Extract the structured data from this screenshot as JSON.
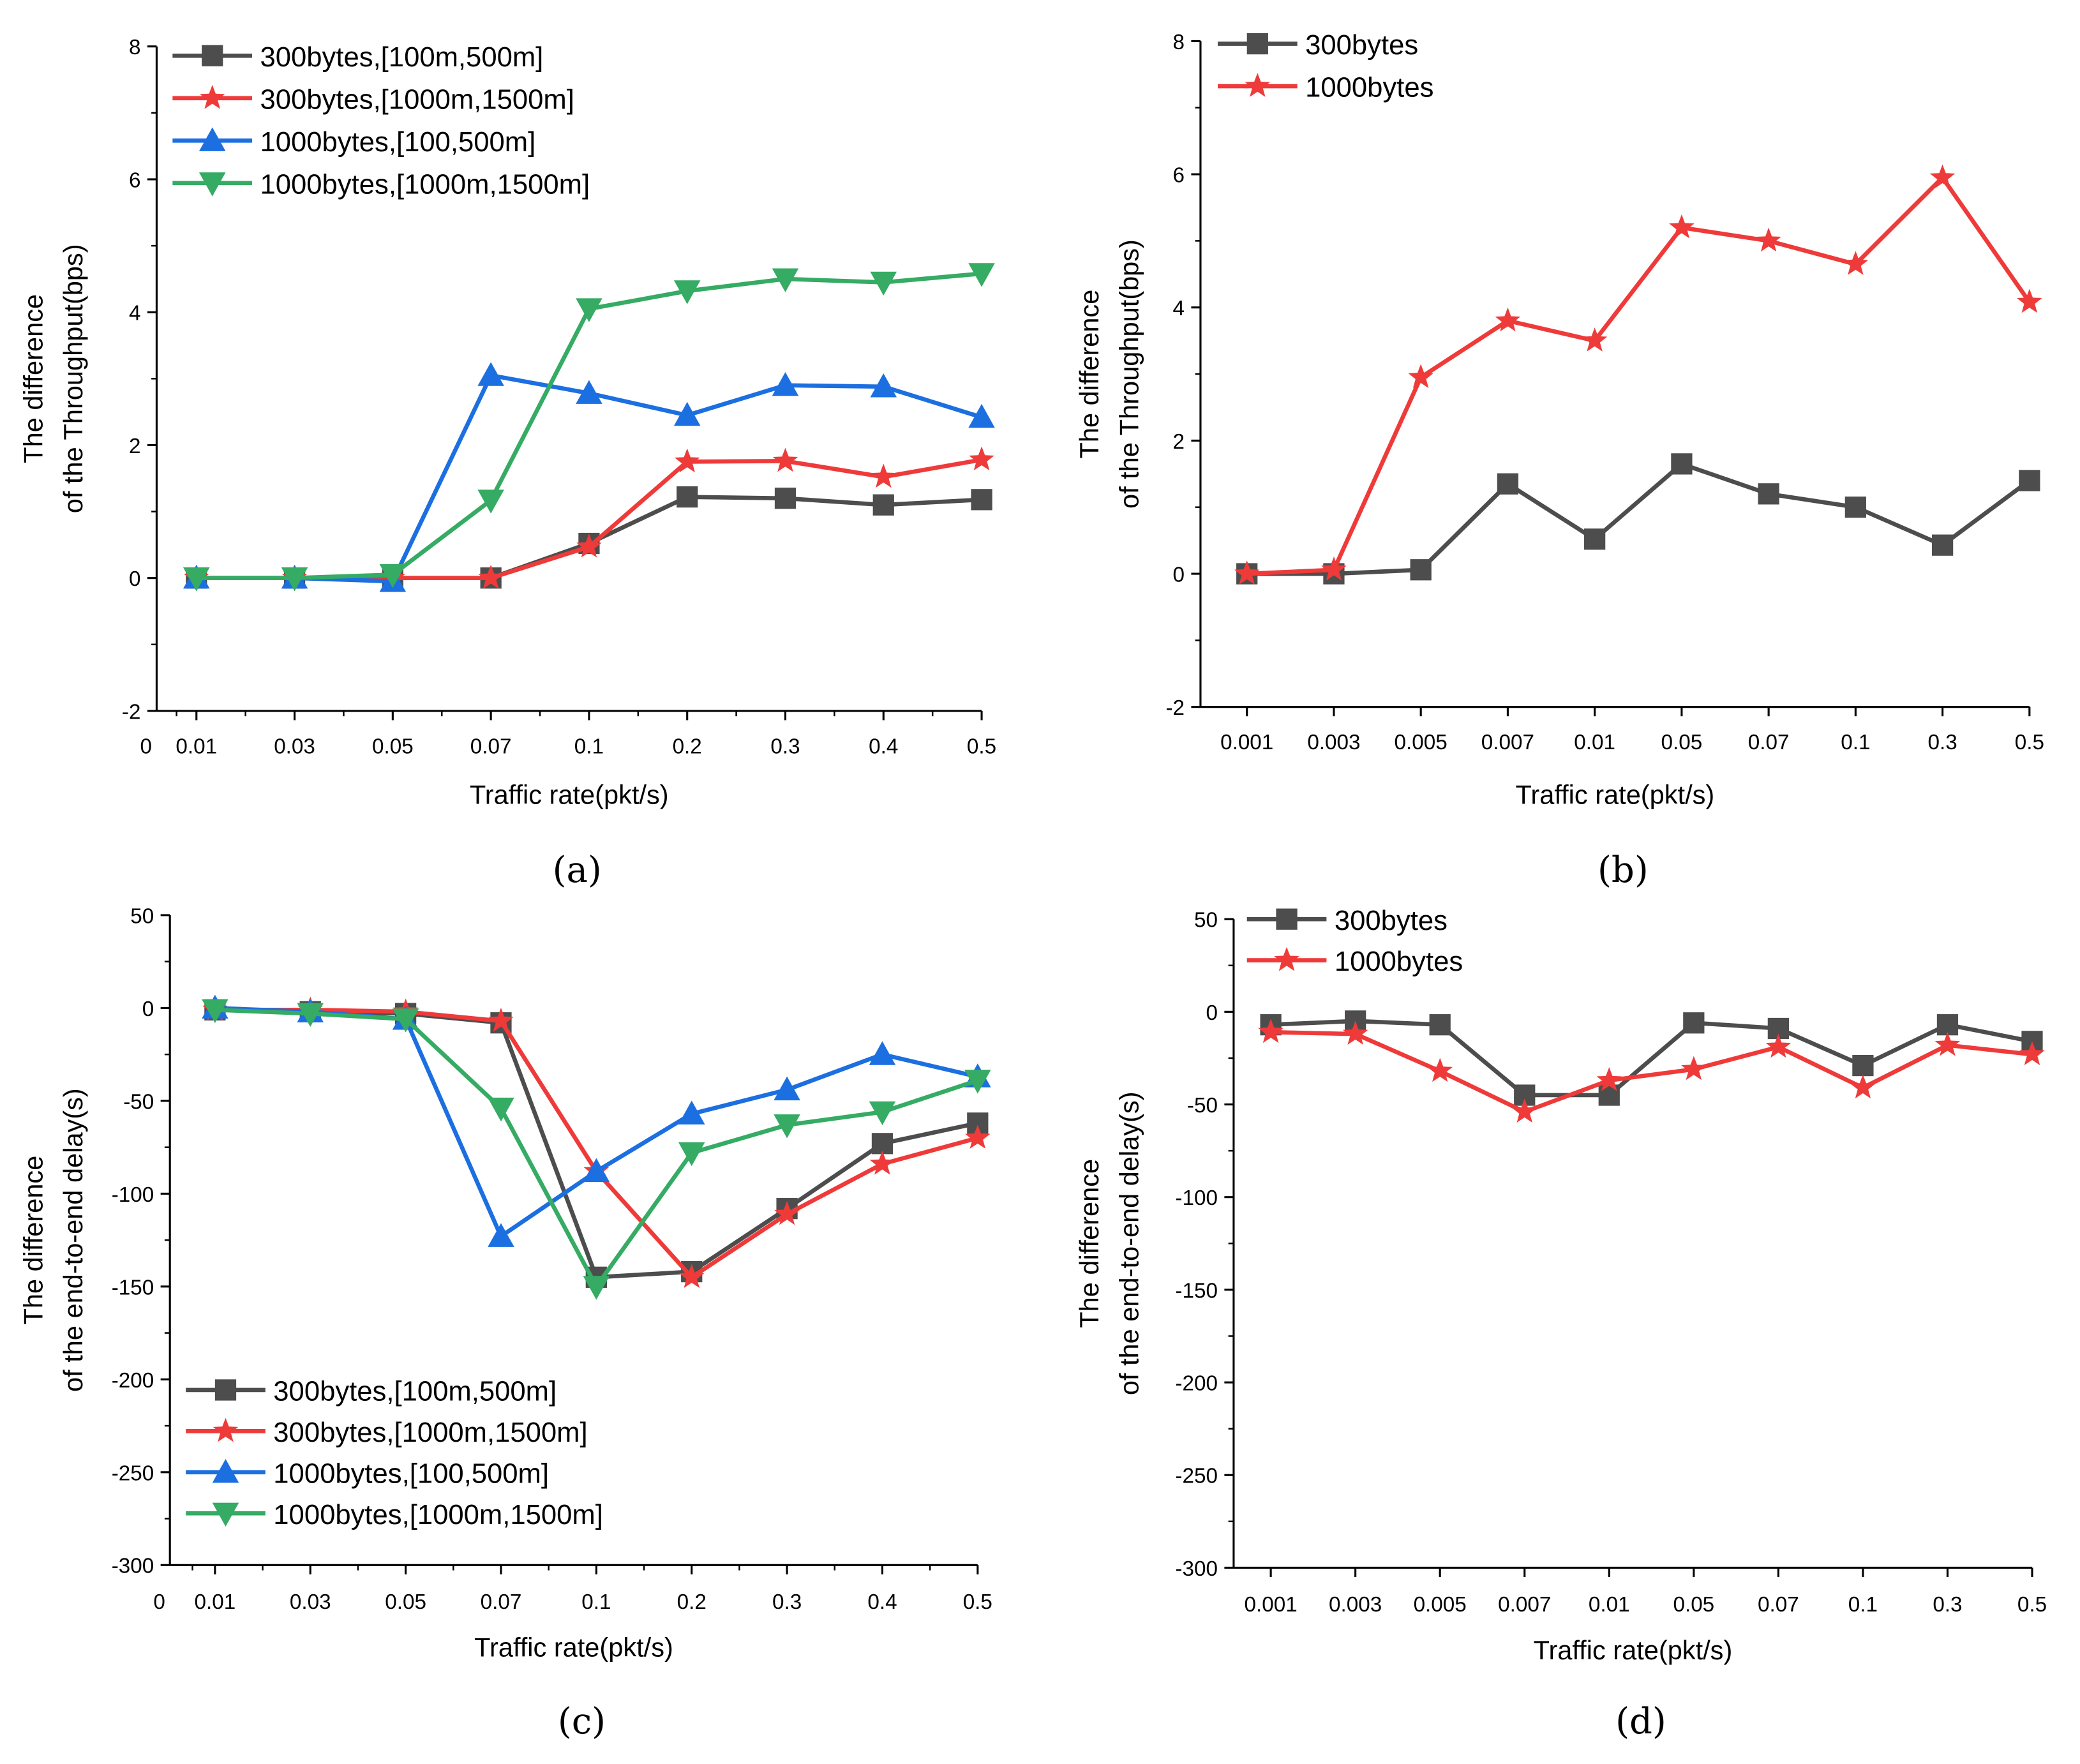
{
  "colors": {
    "black": "#4d4d4d",
    "red": "#ef3a3a",
    "blue": "#1c6fe0",
    "green": "#35ab64"
  },
  "chart_data": [
    {
      "type": "line",
      "caption": "(a)",
      "xlabel": "Traffic rate(pkt/s)",
      "ylabel": [
        "The difference",
        "of  the Throughput(bps)"
      ],
      "x_origin_label": "0",
      "categories": [
        "0.01",
        "0.03",
        "0.05",
        "0.07",
        "0.1",
        "0.2",
        "0.3",
        "0.4",
        "0.5"
      ],
      "ylim": [
        -2,
        8
      ],
      "yticks": [
        -2,
        0,
        2,
        4,
        6,
        8
      ],
      "legend": "top-left",
      "series": [
        {
          "name": "300bytes,[100m,500m]",
          "color": "black",
          "marker": "square",
          "values": [
            0,
            0,
            0,
            0,
            0.52,
            1.22,
            1.2,
            1.1,
            1.18
          ]
        },
        {
          "name": "300bytes,[1000m,1500m]",
          "color": "red",
          "marker": "star",
          "values": [
            0,
            0,
            0,
            0,
            0.47,
            1.75,
            1.76,
            1.52,
            1.78
          ]
        },
        {
          "name": "1000bytes,[100,500m]",
          "color": "blue",
          "marker": "triangle-up",
          "values": [
            0,
            0,
            -0.05,
            3.05,
            2.78,
            2.45,
            2.9,
            2.88,
            2.42
          ]
        },
        {
          "name": "1000bytes,[1000m,1500m]",
          "color": "green",
          "marker": "triangle-down",
          "values": [
            0,
            0,
            0.05,
            1.17,
            4.05,
            4.32,
            4.5,
            4.45,
            4.58
          ]
        }
      ]
    },
    {
      "type": "line",
      "caption": "(b)",
      "xlabel": "Traffic rate(pkt/s)",
      "ylabel": [
        "The difference",
        "of  the Throughput(bps)"
      ],
      "categories": [
        "0.001",
        "0.003",
        "0.005",
        "0.007",
        "0.01",
        "0.05",
        "0.07",
        "0.1",
        "0.3",
        "0.5"
      ],
      "ylim": [
        -2,
        8
      ],
      "yticks": [
        -2,
        0,
        2,
        4,
        6,
        8
      ],
      "legend": "top-left",
      "series": [
        {
          "name": "300bytes",
          "color": "black",
          "marker": "square",
          "values": [
            0,
            0,
            0.06,
            1.35,
            0.52,
            1.65,
            1.2,
            1.0,
            0.43,
            1.4
          ]
        },
        {
          "name": "1000bytes",
          "color": "red",
          "marker": "star",
          "values": [
            0,
            0.06,
            2.95,
            3.8,
            3.5,
            5.2,
            5.0,
            4.65,
            5.95,
            4.08
          ]
        }
      ]
    },
    {
      "type": "line",
      "caption": "(c)",
      "xlabel": "Traffic rate(pkt/s)",
      "ylabel": [
        "The difference",
        "of the end-to-end delay(s)"
      ],
      "x_origin_label": "0",
      "categories": [
        "0.01",
        "0.03",
        "0.05",
        "0.07",
        "0.1",
        "0.2",
        "0.3",
        "0.4",
        "0.5"
      ],
      "ylim": [
        -300,
        50
      ],
      "yticks": [
        -300,
        -250,
        -200,
        -150,
        -100,
        -50,
        0,
        50
      ],
      "legend": "bottom-left",
      "series": [
        {
          "name": "300bytes,[100m,500m]",
          "color": "black",
          "marker": "square",
          "values": [
            -1,
            -2,
            -3,
            -8,
            -145,
            -142,
            -108,
            -73,
            -62
          ]
        },
        {
          "name": "300bytes,[1000m,1500m]",
          "color": "red",
          "marker": "star",
          "values": [
            -1,
            -1,
            -2,
            -7,
            -88,
            -145,
            -111,
            -84,
            -70
          ]
        },
        {
          "name": "1000bytes,[100,500m]",
          "color": "blue",
          "marker": "triangle-up",
          "values": [
            0,
            -2,
            -6,
            -123,
            -88,
            -57,
            -44,
            -25,
            -37
          ]
        },
        {
          "name": "1000bytes,[1000m,1500m]",
          "color": "green",
          "marker": "triangle-down",
          "values": [
            -1,
            -3,
            -6,
            -54,
            -150,
            -78,
            -63,
            -56,
            -39
          ]
        }
      ]
    },
    {
      "type": "line",
      "caption": "(d)",
      "xlabel": "Traffic rate(pkt/s)",
      "ylabel": [
        "The difference",
        "of the end-to-end delay(s)"
      ],
      "categories": [
        "0.001",
        "0.003",
        "0.005",
        "0.007",
        "0.01",
        "0.05",
        "0.07",
        "0.1",
        "0.3",
        "0.5"
      ],
      "ylim": [
        -300,
        50
      ],
      "yticks": [
        -300,
        -250,
        -200,
        -150,
        -100,
        -50,
        0,
        50
      ],
      "legend": "top-left",
      "series": [
        {
          "name": "300bytes",
          "color": "black",
          "marker": "square",
          "values": [
            -7,
            -5,
            -7,
            -45,
            -45,
            -6,
            -9,
            -29,
            -7,
            -16
          ]
        },
        {
          "name": "1000bytes",
          "color": "red",
          "marker": "star",
          "values": [
            -11,
            -12,
            -32,
            -54,
            -37,
            -31,
            -19,
            -41,
            -18,
            -23
          ]
        }
      ]
    }
  ]
}
